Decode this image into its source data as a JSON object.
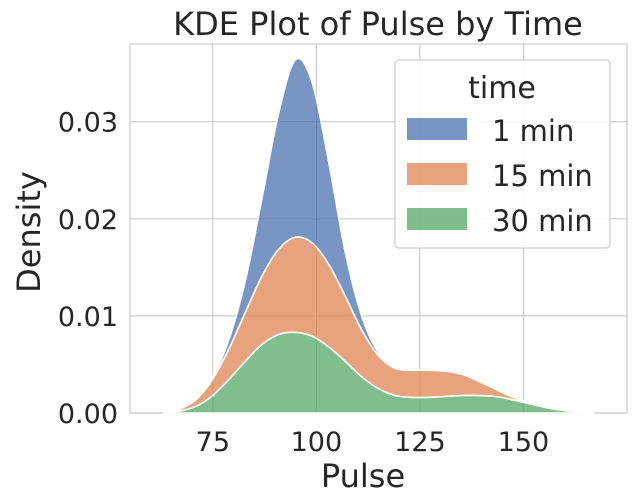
{
  "chart_data": {
    "type": "area",
    "title": "KDE Plot of Pulse by Time",
    "xlabel": "Pulse",
    "ylabel": "Density",
    "xlim": [
      55,
      175
    ],
    "ylim": [
      0,
      0.038
    ],
    "xticks": [
      75,
      100,
      125,
      150
    ],
    "xtick_labels": [
      "75",
      "100",
      "125",
      "150"
    ],
    "yticks": [
      0,
      0.01,
      0.02,
      0.03
    ],
    "ytick_labels": [
      "0.00",
      "0.01",
      "0.02",
      "0.03"
    ],
    "grid": true,
    "stacked": true,
    "legend": {
      "title": "time",
      "position": "top-right"
    },
    "x": [
      63,
      67,
      71,
      75,
      79,
      83,
      87,
      91,
      95,
      99,
      103,
      107,
      111,
      115,
      119,
      123,
      127,
      131,
      135,
      139,
      143,
      147,
      151,
      155,
      159,
      163,
      167
    ],
    "series": [
      {
        "name": "1 min",
        "color": "#4c72b0",
        "values": [
          0,
          0,
          0,
          0.0002,
          0.001,
          0.0034,
          0.0082,
          0.0142,
          0.0183,
          0.0165,
          0.0105,
          0.0045,
          0.0014,
          0.0003,
          5e-05,
          0,
          0,
          0,
          0,
          0,
          0,
          0,
          0,
          0,
          0,
          0,
          0
        ]
      },
      {
        "name": "15 min",
        "color": "#dd8452",
        "values": [
          0,
          0.0002,
          0.0007,
          0.0017,
          0.0032,
          0.0051,
          0.0071,
          0.0088,
          0.0098,
          0.0096,
          0.0085,
          0.0067,
          0.0048,
          0.0034,
          0.0028,
          0.0028,
          0.0028,
          0.0026,
          0.0022,
          0.0015,
          0.0008,
          0.0003,
          0.0001,
          0,
          0,
          0,
          0
        ]
      },
      {
        "name": "30 min",
        "color": "#55a868",
        "values": [
          0,
          0.0002,
          0.0007,
          0.0018,
          0.0035,
          0.0054,
          0.0071,
          0.0081,
          0.0083,
          0.0079,
          0.0068,
          0.0053,
          0.0037,
          0.0025,
          0.0018,
          0.0016,
          0.0016,
          0.0017,
          0.0018,
          0.0018,
          0.0017,
          0.0014,
          0.001,
          0.0006,
          0.0003,
          0.0001,
          0
        ]
      }
    ]
  }
}
